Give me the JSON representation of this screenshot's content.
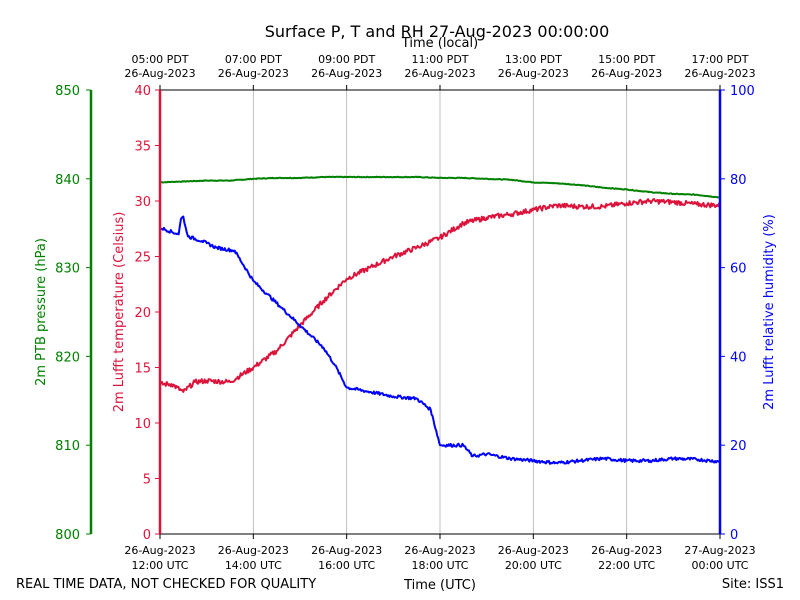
{
  "chart_data": {
    "type": "line",
    "title": "Surface P, T and RH 27-Aug-2023 00:00:00",
    "top_axis_label": "Time (local)",
    "xlabel": "Time (UTC)",
    "footer_left": "REAL TIME DATA, NOT CHECKED FOR QUALITY",
    "footer_right": "Site: ISS1",
    "x_range_hours_utc": [
      12,
      24
    ],
    "bottom_ticks": [
      {
        "hour": 12,
        "date": "26-Aug-2023",
        "time": "12:00 UTC"
      },
      {
        "hour": 14,
        "date": "26-Aug-2023",
        "time": "14:00 UTC"
      },
      {
        "hour": 16,
        "date": "26-Aug-2023",
        "time": "16:00 UTC"
      },
      {
        "hour": 18,
        "date": "26-Aug-2023",
        "time": "18:00 UTC"
      },
      {
        "hour": 20,
        "date": "26-Aug-2023",
        "time": "20:00 UTC"
      },
      {
        "hour": 22,
        "date": "26-Aug-2023",
        "time": "22:00 UTC"
      },
      {
        "hour": 24,
        "date": "27-Aug-2023",
        "time": "00:00 UTC"
      }
    ],
    "top_ticks": [
      {
        "hour": 12,
        "time": "05:00 PDT",
        "date": "26-Aug-2023"
      },
      {
        "hour": 14,
        "time": "07:00 PDT",
        "date": "26-Aug-2023"
      },
      {
        "hour": 16,
        "time": "09:00 PDT",
        "date": "26-Aug-2023"
      },
      {
        "hour": 18,
        "time": "11:00 PDT",
        "date": "26-Aug-2023"
      },
      {
        "hour": 20,
        "time": "13:00 PDT",
        "date": "26-Aug-2023"
      },
      {
        "hour": 22,
        "time": "15:00 PDT",
        "date": "26-Aug-2023"
      },
      {
        "hour": 24,
        "time": "17:00 PDT",
        "date": "26-Aug-2023"
      }
    ],
    "axes": {
      "pressure": {
        "label": "2m PTB pressure (hPa)",
        "range": [
          800,
          850
        ],
        "ticks": [
          "800",
          "810",
          "820",
          "830",
          "840",
          "850"
        ],
        "color": "#008000"
      },
      "temperature": {
        "label": "2m Lufft temperature (Celsius)",
        "range": [
          0,
          40
        ],
        "ticks": [
          "0",
          "5",
          "10",
          "15",
          "20",
          "25",
          "30",
          "35",
          "40"
        ],
        "color": "#dc143c"
      },
      "humidity": {
        "label": "2m Lufft relative humidity (%)",
        "range": [
          0,
          100
        ],
        "ticks": [
          "0",
          "20",
          "40",
          "60",
          "80",
          "100"
        ],
        "color": "#0000ff"
      }
    },
    "grid": "vertical",
    "series": [
      {
        "name": "2m PTB pressure",
        "axis": "pressure",
        "color": "#008000",
        "x": [
          12.0,
          12.5,
          13.0,
          13.5,
          14.0,
          14.5,
          15.0,
          15.5,
          16.0,
          16.5,
          17.0,
          17.5,
          18.0,
          18.5,
          19.0,
          19.5,
          20.0,
          20.5,
          21.0,
          21.5,
          22.0,
          22.5,
          23.0,
          23.5,
          24.0
        ],
        "values": [
          839.6,
          839.7,
          839.8,
          839.8,
          840.0,
          840.1,
          840.1,
          840.2,
          840.2,
          840.2,
          840.2,
          840.2,
          840.1,
          840.1,
          840.0,
          839.9,
          839.6,
          839.5,
          839.3,
          839.0,
          838.8,
          838.5,
          838.3,
          838.2,
          837.9
        ]
      },
      {
        "name": "2m Lufft temperature",
        "axis": "temperature",
        "color": "#dc143c",
        "x": [
          12.0,
          12.25,
          12.5,
          12.75,
          13.0,
          13.5,
          14.0,
          14.5,
          15.0,
          15.5,
          16.0,
          16.5,
          17.0,
          17.5,
          18.0,
          18.5,
          19.0,
          19.5,
          20.0,
          20.5,
          21.0,
          21.5,
          22.0,
          22.5,
          23.0,
          23.5,
          24.0
        ],
        "values": [
          13.5,
          13.5,
          12.8,
          13.7,
          13.8,
          13.7,
          15.0,
          16.5,
          18.8,
          21.0,
          23.0,
          24.0,
          25.0,
          25.8,
          26.7,
          28.0,
          28.5,
          28.8,
          29.2,
          29.6,
          29.5,
          29.5,
          29.8,
          30.0,
          29.9,
          29.7,
          29.6
        ]
      },
      {
        "name": "2m Lufft relative humidity",
        "axis": "humidity",
        "color": "#0000ff",
        "x": [
          12.0,
          12.4,
          12.45,
          12.5,
          12.55,
          12.6,
          12.9,
          13.0,
          13.2,
          13.6,
          14.0,
          14.3,
          14.6,
          15.0,
          15.5,
          15.75,
          16.0,
          16.5,
          17.0,
          17.5,
          17.8,
          18.0,
          18.5,
          18.7,
          19.0,
          19.5,
          20.0,
          20.5,
          21.0,
          21.5,
          22.0,
          22.5,
          23.0,
          23.5,
          24.0
        ],
        "values": [
          69.0,
          67.5,
          71.0,
          71.5,
          69.0,
          67.0,
          66.0,
          65.5,
          64.5,
          63.8,
          57.0,
          54.0,
          51.0,
          47.0,
          42.0,
          38.0,
          33.0,
          32.0,
          31.0,
          30.5,
          28.0,
          20.0,
          20.0,
          17.5,
          18.0,
          17.0,
          16.5,
          16.0,
          16.5,
          17.0,
          16.5,
          16.5,
          17.0,
          16.8,
          16.3
        ]
      }
    ]
  }
}
